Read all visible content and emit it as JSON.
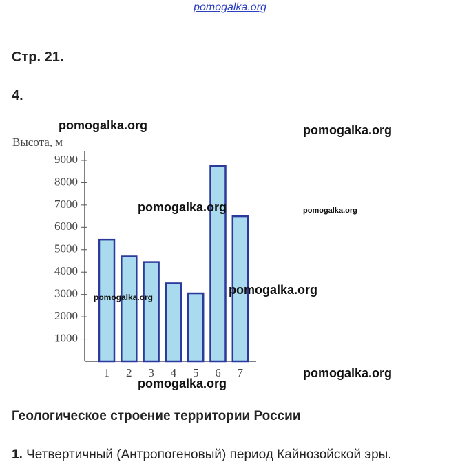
{
  "header": {
    "site": "pomogalka.org",
    "page": "Стр. 21.",
    "task": "4."
  },
  "chart_data": {
    "type": "bar",
    "ylabel": "Высота, м",
    "categories": [
      "1",
      "2",
      "3",
      "4",
      "5",
      "6",
      "7"
    ],
    "values": [
      5450,
      4700,
      4450,
      3500,
      3050,
      8750,
      6500
    ],
    "color": "#a9daee",
    "edge_color": "#2b3a9c",
    "ylim": [
      0,
      9400
    ],
    "yticks": [
      1000,
      2000,
      3000,
      4000,
      5000,
      6000,
      7000,
      8000,
      9000
    ]
  },
  "watermarks": [
    "pomogalka.org",
    "pomogalka.org",
    "pomogalka.org",
    "pomogalka.org",
    "pomogalka.org",
    "pomogalka.org",
    "pomogalka.org",
    "pomogalka.org"
  ],
  "section": {
    "title": "Геологическое строение территории России",
    "items": [
      {
        "number": "1.",
        "text": " Четвертичный (Антропогеновый) период Кайнозойской эры."
      }
    ]
  }
}
